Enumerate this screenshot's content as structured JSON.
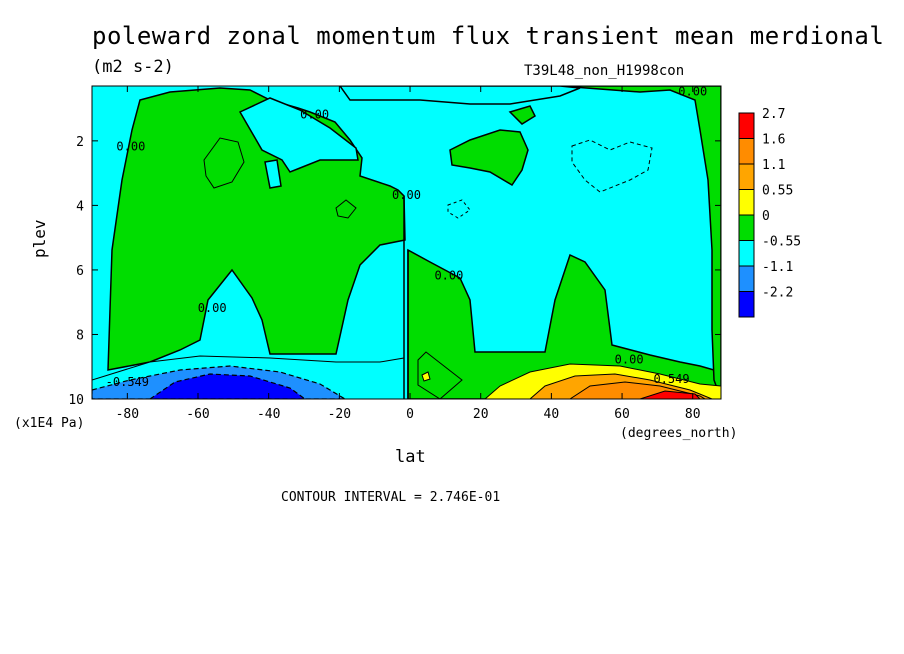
{
  "chart_data": {
    "type": "heatmap",
    "title": "poleward zonal momentum flux transient mean merdional",
    "units": "(m2 s-2)",
    "dataset": "T39L48_non_H1998con",
    "xlabel": "lat",
    "xunits": "(degrees_north)",
    "ylabel": "plev",
    "yunits": "(x1E4 Pa)",
    "xlim": [
      -90,
      88
    ],
    "ylim": [
      10,
      0.3
    ],
    "x_ticks": [
      -80,
      -60,
      -40,
      -20,
      0,
      20,
      40,
      60,
      80
    ],
    "y_ticks": [
      2,
      4,
      6,
      8,
      10
    ],
    "contour_interval": "CONTOUR INTERVAL = 2.746E-01",
    "colorbar": {
      "levels": [
        "2.7",
        "1.6",
        "1.1",
        "0.55",
        "0",
        "-0.55",
        "-1.1",
        "-2.2"
      ],
      "colors": [
        "#ff0000",
        "#ff8c00",
        "#ffa500",
        "#ffff00",
        "#00dd00",
        "#00ffff",
        "#1e90ff",
        "#0000ff"
      ]
    },
    "contour_labels": [
      {
        "text": "0.00",
        "x": -79,
        "y": 2.3
      },
      {
        "text": "0.00",
        "x": -27,
        "y": 1.3
      },
      {
        "text": "0.00",
        "x": -1,
        "y": 3.8
      },
      {
        "text": "0.00",
        "x": 11,
        "y": 6.3
      },
      {
        "text": "0.00",
        "x": -56,
        "y": 7.3
      },
      {
        "text": "0.00",
        "x": 62,
        "y": 8.9
      },
      {
        "text": "0.00",
        "x": 80,
        "y": 0.6
      },
      {
        "text": "-0.549",
        "x": -80,
        "y": 9.6
      },
      {
        "text": "0.549",
        "x": 74,
        "y": 9.5
      }
    ],
    "regions": [
      {
        "value": "0 to 0.55",
        "color": "#00dd00"
      },
      {
        "value": "-0.55 to 0",
        "color": "#00ffff"
      },
      {
        "value": "-1.1 to -0.55",
        "color": "#1e90ff"
      },
      {
        "value": "-2.2 to -1.1",
        "color": "#0000ff"
      },
      {
        "value": "0.55 to 1.1",
        "color": "#ffff00"
      },
      {
        "value": "1.1 to 1.6",
        "color": "#ffa500"
      },
      {
        "value": "1.6 to 2.7",
        "color": "#ff8c00"
      },
      {
        "value": "2.7",
        "color": "#ff0000"
      }
    ]
  }
}
